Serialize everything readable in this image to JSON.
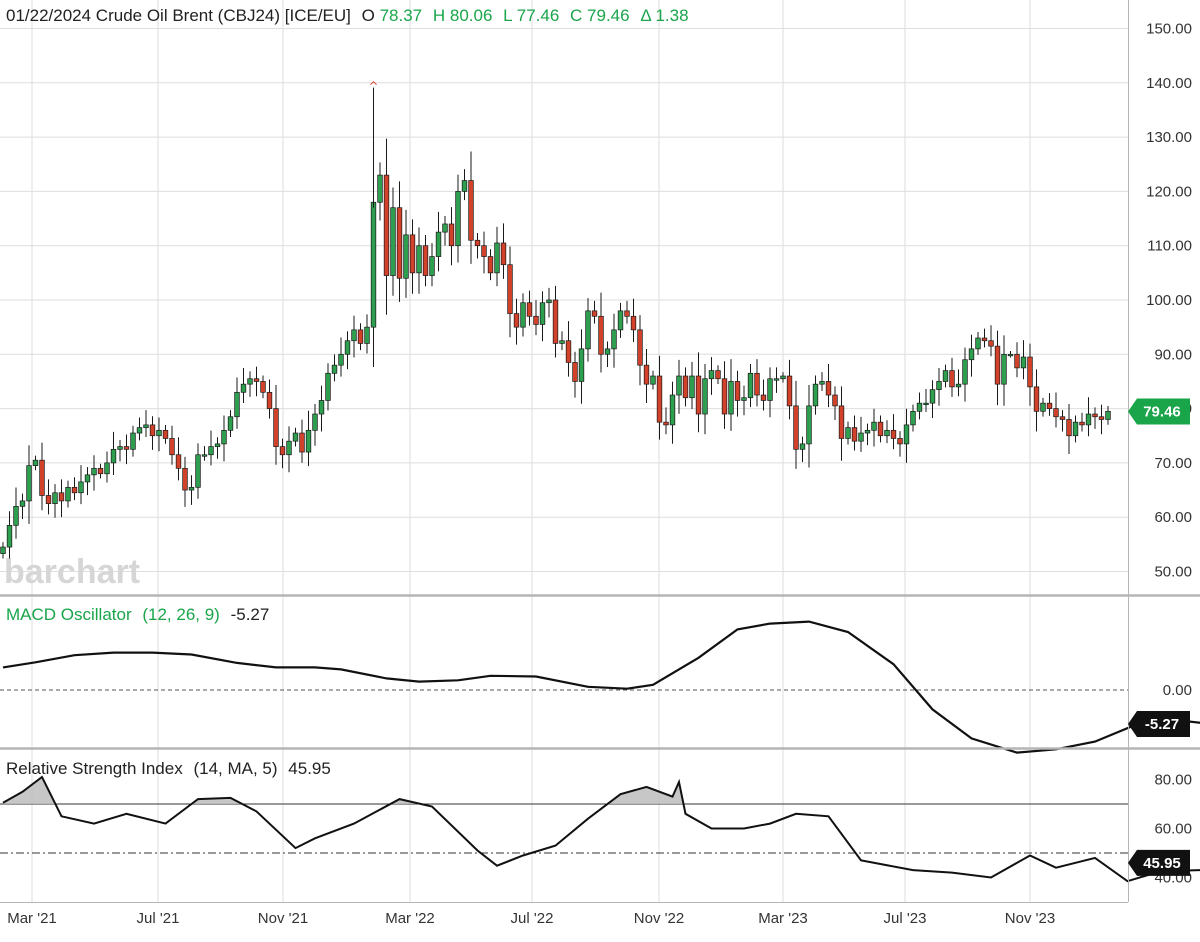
{
  "header": {
    "title": "01/22/2024 Crude Oil Brent (CBJ24) [ICE/EU]",
    "open_label": "O",
    "open": "78.37",
    "high_label": "H",
    "high": "80.06",
    "low_label": "L",
    "low": "77.46",
    "close_label": "C",
    "close": "79.46",
    "change_label": "Δ",
    "change": "1.38"
  },
  "watermark": "barchart",
  "colors": {
    "up": "#2e9e4f",
    "down": "#d2422b",
    "accent": "#1aa54b",
    "grid": "#dedede",
    "panel_border": "#b5b5b5",
    "line": "#111111"
  },
  "chart_data": [
    {
      "type": "candlestick",
      "title": "Crude Oil Brent (CBJ24) [ICE/EU]",
      "interval": "weekly",
      "ylim": [
        45,
        155
      ],
      "yticks": [
        "50.00",
        "60.00",
        "70.00",
        "80.00",
        "90.00",
        "100.00",
        "110.00",
        "120.00",
        "130.00",
        "140.00",
        "150.00"
      ],
      "xtick_labels": [
        "Mar '21",
        "Jul '21",
        "Nov '21",
        "Mar '22",
        "Jul '22",
        "Nov '22",
        "Mar '23",
        "Jul '23",
        "Nov '23"
      ],
      "last_price": "79.46",
      "grid": true,
      "closes": [
        54.5,
        58.5,
        62.0,
        63.0,
        69.5,
        70.5,
        64.0,
        62.5,
        64.5,
        63.0,
        65.5,
        64.5,
        66.5,
        67.8,
        69.0,
        68.0,
        70.0,
        72.5,
        73.0,
        72.5,
        75.5,
        76.5,
        77.0,
        75.0,
        76.0,
        74.5,
        71.5,
        69.0,
        65.0,
        65.5,
        71.5,
        71.5,
        73.0,
        73.5,
        76.0,
        78.5,
        83.0,
        84.5,
        85.5,
        85.0,
        83.0,
        80.0,
        73.0,
        71.5,
        74.0,
        75.5,
        72.0,
        76.0,
        79.0,
        81.5,
        86.5,
        88.0,
        90.0,
        92.5,
        94.5,
        92.0,
        95.0,
        118.0,
        123.0,
        104.5,
        117.0,
        104.0,
        112.0,
        105.0,
        110.0,
        104.5,
        108.0,
        112.5,
        114.0,
        110.0,
        120.0,
        122.0,
        111.0,
        110.0,
        108.0,
        105.0,
        110.5,
        106.5,
        97.5,
        95.0,
        99.5,
        97.0,
        95.5,
        99.5,
        100.0,
        92.0,
        92.5,
        88.5,
        85.0,
        91.0,
        98.0,
        97.0,
        90.0,
        91.0,
        94.5,
        98.0,
        97.0,
        94.5,
        88.0,
        84.5,
        86.0,
        77.5,
        77.0,
        82.5,
        86.0,
        82.0,
        86.0,
        79.0,
        85.5,
        87.0,
        85.5,
        79.0,
        85.0,
        81.5,
        82.0,
        86.5,
        82.5,
        81.5,
        85.5,
        85.5,
        86.0,
        80.5,
        72.5,
        73.5,
        80.5,
        84.5,
        85.0,
        82.5,
        80.5,
        74.5,
        76.5,
        74.0,
        75.5,
        76.0,
        77.5,
        75.0,
        76.0,
        74.5,
        73.5,
        77.0,
        79.5,
        81.0,
        81.0,
        83.5,
        85.0,
        87.0,
        84.0,
        84.5,
        89.0,
        91.0,
        93.0,
        92.5,
        91.5,
        84.5,
        90.0,
        90.0,
        87.5,
        89.5,
        84.0,
        79.5,
        81.0,
        80.0,
        78.5,
        78.0,
        75.0,
        77.5,
        77.0,
        79.0,
        78.5,
        78.0,
        79.5
      ]
    },
    {
      "type": "line",
      "title": "MACD Oscillator",
      "params": "(12, 26, 9)",
      "last_value": "-5.27",
      "reference_line": 0,
      "ylim": [
        -10,
        12
      ],
      "yticks": [
        "0.00"
      ],
      "points": [
        [
          0,
          3.5
        ],
        [
          5,
          4.3
        ],
        [
          11,
          5.4
        ],
        [
          17,
          5.8
        ],
        [
          23,
          5.8
        ],
        [
          29,
          5.5
        ],
        [
          36,
          4.2
        ],
        [
          42,
          3.5
        ],
        [
          48,
          3.5
        ],
        [
          52,
          3.2
        ],
        [
          59,
          1.8
        ],
        [
          64,
          1.3
        ],
        [
          70,
          1.5
        ],
        [
          75,
          2.2
        ],
        [
          82,
          2.1
        ],
        [
          90,
          0.5
        ],
        [
          96,
          0.2
        ],
        [
          100,
          0.8
        ],
        [
          107,
          5
        ],
        [
          113,
          9.4
        ],
        [
          118,
          10.3
        ],
        [
          124,
          10.6
        ],
        [
          130,
          9
        ],
        [
          137,
          4
        ],
        [
          143,
          -3
        ],
        [
          149,
          -7.5
        ],
        [
          156,
          -9.7
        ],
        [
          162,
          -9.2
        ],
        [
          168,
          -8
        ],
        [
          174,
          -5.5
        ],
        [
          180,
          -4.6
        ],
        [
          187,
          -5.4
        ],
        [
          193,
          -4.7
        ],
        [
          200,
          -3.5
        ],
        [
          206,
          -3.2
        ],
        [
          212,
          -2.5
        ],
        [
          218,
          -2.8
        ],
        [
          224,
          -3.4
        ],
        [
          230,
          -2.8
        ],
        [
          238,
          -1.5
        ],
        [
          245,
          1.4
        ],
        [
          251,
          4.2
        ],
        [
          256,
          5.3
        ],
        [
          262,
          4.5
        ],
        [
          268,
          1.8
        ],
        [
          274,
          -1
        ],
        [
          280,
          -3.5
        ],
        [
          285,
          -5.27
        ]
      ]
    },
    {
      "type": "line",
      "title": "Relative Strength Index",
      "params": "(14, MA, 5)",
      "last_value": "45.95",
      "overbought": 70,
      "midline": 50,
      "ylim": [
        32,
        88
      ],
      "yticks": [
        "80.00",
        "60.00",
        "40.00"
      ],
      "points": [
        [
          0,
          70.5
        ],
        [
          3,
          75
        ],
        [
          6,
          81
        ],
        [
          9,
          65
        ],
        [
          14,
          62
        ],
        [
          19,
          66
        ],
        [
          25,
          62
        ],
        [
          30,
          72
        ],
        [
          35,
          72.5
        ],
        [
          39,
          67
        ],
        [
          45,
          52
        ],
        [
          48,
          56
        ],
        [
          54,
          62
        ],
        [
          61,
          72
        ],
        [
          66,
          69
        ],
        [
          73,
          51
        ],
        [
          76,
          44.8
        ],
        [
          80,
          49
        ],
        [
          85,
          53
        ],
        [
          90,
          64
        ],
        [
          95,
          74
        ],
        [
          99,
          77
        ],
        [
          103,
          73
        ],
        [
          104,
          79
        ],
        [
          105,
          66
        ],
        [
          109,
          60
        ],
        [
          114,
          60
        ],
        [
          118,
          62
        ],
        [
          122,
          66
        ],
        [
          127,
          65
        ],
        [
          132,
          47
        ],
        [
          140,
          43
        ],
        [
          146,
          42
        ],
        [
          152,
          40
        ],
        [
          158,
          49
        ],
        [
          162,
          44
        ],
        [
          168,
          48
        ],
        [
          173,
          38.5
        ],
        [
          178,
          42.5
        ],
        [
          184,
          43
        ],
        [
          190,
          42.5
        ],
        [
          195,
          39
        ],
        [
          200,
          47
        ],
        [
          206,
          44
        ],
        [
          212,
          41
        ],
        [
          217,
          49
        ],
        [
          222,
          49
        ],
        [
          226,
          45.8
        ],
        [
          232,
          50
        ],
        [
          236,
          56
        ],
        [
          240,
          57
        ],
        [
          245,
          55
        ],
        [
          250,
          64
        ],
        [
          253,
          62
        ],
        [
          256,
          50
        ],
        [
          259,
          57
        ],
        [
          264,
          44
        ],
        [
          270,
          42
        ],
        [
          274,
          38
        ],
        [
          278,
          44
        ],
        [
          282,
          44
        ],
        [
          285,
          45.95
        ]
      ]
    }
  ]
}
